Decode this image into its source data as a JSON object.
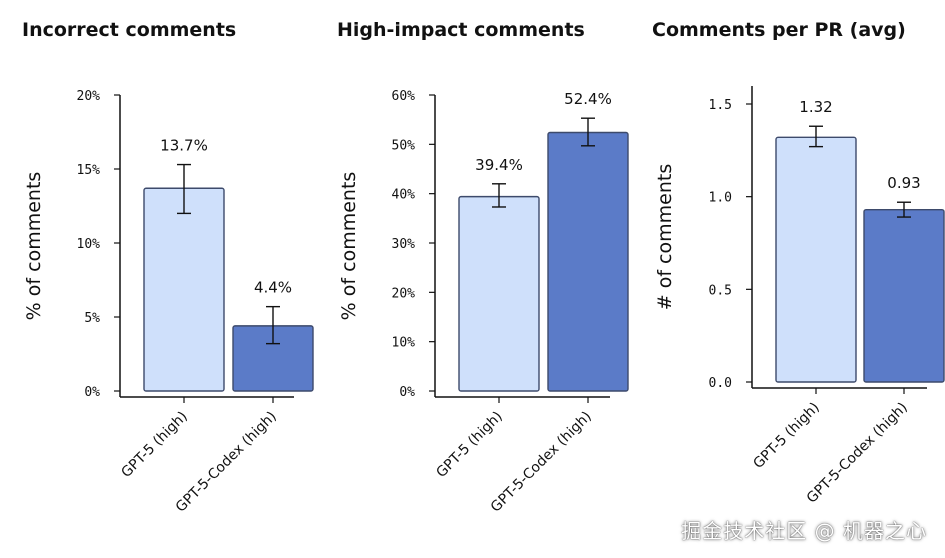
{
  "chart_data": [
    {
      "type": "bar",
      "title": "Incorrect comments",
      "ylabel": "% of comments",
      "categories": [
        "GPT-5 (high)",
        "GPT-5-Codex (high)"
      ],
      "values": [
        13.7,
        4.4
      ],
      "data_labels": [
        "13.7%",
        "4.4%"
      ],
      "error_low": [
        12.0,
        3.2
      ],
      "error_high": [
        15.3,
        5.7
      ],
      "ylim": [
        0,
        20
      ],
      "yticks": [
        0,
        5,
        10,
        15,
        20
      ],
      "ytick_labels": [
        "0%",
        "5%",
        "10%",
        "15%",
        "20%"
      ],
      "grid": false
    },
    {
      "type": "bar",
      "title": "High-impact comments",
      "ylabel": "% of comments",
      "categories": [
        "GPT-5 (high)",
        "GPT-5-Codex (high)"
      ],
      "values": [
        39.4,
        52.4
      ],
      "data_labels": [
        "39.4%",
        "52.4%"
      ],
      "error_low": [
        37.3,
        49.7
      ],
      "error_high": [
        42.0,
        55.3
      ],
      "ylim": [
        0,
        60
      ],
      "yticks": [
        0,
        10,
        20,
        30,
        40,
        50,
        60
      ],
      "ytick_labels": [
        "0%",
        "10%",
        "20%",
        "30%",
        "40%",
        "50%",
        "60%"
      ],
      "grid": false
    },
    {
      "type": "bar",
      "title": "Comments per PR (avg)",
      "ylabel": "# of comments",
      "categories": [
        "GPT-5 (high)",
        "GPT-5-Codex (high)"
      ],
      "values": [
        1.32,
        0.93
      ],
      "data_labels": [
        "1.32",
        "0.93"
      ],
      "error_low": [
        1.27,
        0.89
      ],
      "error_high": [
        1.38,
        0.97
      ],
      "ylim": [
        0,
        1.5
      ],
      "yticks": [
        0,
        0.5,
        1.0,
        1.5
      ],
      "ytick_labels": [
        "0.0",
        "0.5",
        "1.0",
        "1.5"
      ],
      "grid": false
    }
  ],
  "colors": {
    "series": [
      "#cfe0fb",
      "#5b7bc8"
    ],
    "bar_edge": "#3d4a6b",
    "axis": "#111111"
  },
  "watermark": "掘金技术社区 @ 机器之心"
}
